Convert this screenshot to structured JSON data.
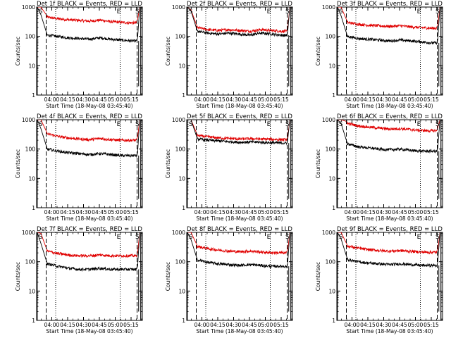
{
  "colors": {
    "events": "#000000",
    "lld": "#e00000",
    "axis": "#000000",
    "background": "#ffffff"
  },
  "panels": [
    {
      "title": "Det 1f BLACK = Events, RED = LLD",
      "xlabel": "Start Time (18-May-08 03:45:40)",
      "ylabel": "Counts/sec"
    },
    {
      "title": "Det 2f BLACK = Events, RED = LLD",
      "xlabel": "Start Time (18-May-08 03:45:40)",
      "ylabel": "Counts/sec"
    },
    {
      "title": "Det 3f BLACK = Events, RED = LLD",
      "xlabel": "Start Time (18-May-08 03:45:40)",
      "ylabel": "Counts/sec"
    },
    {
      "title": "Det 4f BLACK = Events, RED = LLD",
      "xlabel": "Start Time (18-May-08 03:45:40)",
      "ylabel": "Counts/sec"
    },
    {
      "title": "Det 5f BLACK = Events, RED = LLD",
      "xlabel": "Start Time (18-May-08 03:45:40)",
      "ylabel": "Counts/sec"
    },
    {
      "title": "Det 6f BLACK = Events, RED = LLD",
      "xlabel": "Start Time (18-May-08 03:45:40)",
      "ylabel": "Counts/sec"
    },
    {
      "title": "Det 7f BLACK = Events, RED = LLD",
      "xlabel": "Start Time (18-May-08 03:45:40)",
      "ylabel": "Counts/sec"
    },
    {
      "title": "Det 8f BLACK = Events, RED = LLD",
      "xlabel": "Start Time (18-May-08 03:45:40)",
      "ylabel": "Counts/sec"
    },
    {
      "title": "Det 9f BLACK = Events, RED = LLD",
      "xlabel": "Start Time (18-May-08 03:45:40)",
      "ylabel": "Counts/sec"
    }
  ],
  "chart_data": {
    "type": "line",
    "layout": "3x3 grid",
    "x_unit": "minutes after 03:45:40",
    "xlim": [
      0,
      100
    ],
    "y_scale": "log",
    "ylim": [
      1,
      1000
    ],
    "x_ticks": [
      {
        "label": "04:00",
        "value": 14.33
      },
      {
        "label": "04:15",
        "value": 29.33
      },
      {
        "label": "04:30",
        "value": 44.33
      },
      {
        "label": "04:45",
        "value": 59.33
      },
      {
        "label": "05:00",
        "value": 74.33
      },
      {
        "label": "05:15",
        "value": 89.33
      }
    ],
    "y_ticks": [
      {
        "label": "1",
        "value": 1
      },
      {
        "label": "10",
        "value": 10
      },
      {
        "label": "100",
        "value": 100
      },
      {
        "label": "1000",
        "value": 1000
      }
    ],
    "markers": [
      {
        "label": "S",
        "position": 0.5,
        "style": "solid"
      },
      {
        "label": "",
        "position": 9,
        "style": "dashed"
      },
      {
        "label": "",
        "position": 18,
        "style": "dotted"
      },
      {
        "label": "E",
        "position": 79,
        "style": "dotted"
      },
      {
        "label": "",
        "position": 95,
        "style": "dashed"
      },
      {
        "label": "S",
        "position": 98.5,
        "style": "solid"
      }
    ],
    "series": [
      {
        "name": "BLACK = Events",
        "color": "#000000"
      },
      {
        "name": "RED = LLD",
        "color": "#e00000"
      }
    ],
    "panels": [
      {
        "detector": "1f",
        "events_level": 100,
        "lld_level": 400,
        "x_values": [
          10,
          20,
          30,
          40,
          50,
          60,
          70,
          80,
          90
        ],
        "events": [
          110,
          100,
          90,
          85,
          80,
          90,
          80,
          75,
          70
        ],
        "lld": [
          450,
          400,
          370,
          350,
          330,
          360,
          320,
          300,
          290
        ]
      },
      {
        "detector": "2f",
        "events_level": 130,
        "lld_level": 180,
        "x_values": [
          10,
          20,
          30,
          40,
          50,
          60,
          70,
          80,
          90
        ],
        "events": [
          150,
          130,
          120,
          130,
          120,
          110,
          130,
          120,
          110
        ],
        "lld": [
          200,
          170,
          160,
          170,
          160,
          150,
          170,
          160,
          150
        ]
      },
      {
        "detector": "3f",
        "events_level": 90,
        "lld_level": 250,
        "x_values": [
          10,
          20,
          30,
          40,
          50,
          60,
          70,
          80,
          90
        ],
        "events": [
          100,
          85,
          80,
          75,
          70,
          75,
          70,
          65,
          60
        ],
        "lld": [
          300,
          260,
          240,
          230,
          220,
          230,
          210,
          200,
          190
        ]
      },
      {
        "detector": "4f",
        "events_level": 85,
        "lld_level": 250,
        "x_values": [
          10,
          20,
          30,
          40,
          50,
          60,
          70,
          80,
          90
        ],
        "events": [
          100,
          85,
          75,
          70,
          65,
          70,
          65,
          60,
          60
        ],
        "lld": [
          330,
          270,
          240,
          220,
          210,
          230,
          210,
          200,
          200
        ]
      },
      {
        "detector": "5f",
        "events_level": 190,
        "lld_level": 240,
        "x_values": [
          10,
          20,
          30,
          40,
          50,
          60,
          70,
          80,
          90
        ],
        "events": [
          220,
          200,
          190,
          180,
          170,
          175,
          170,
          165,
          160
        ],
        "lld": [
          290,
          260,
          240,
          230,
          220,
          225,
          220,
          215,
          210
        ]
      },
      {
        "detector": "6f",
        "events_level": 110,
        "lld_level": 550,
        "x_values": [
          10,
          20,
          30,
          40,
          50,
          60,
          70,
          80,
          90
        ],
        "events": [
          150,
          120,
          110,
          100,
          95,
          100,
          90,
          85,
          85
        ],
        "lld": [
          750,
          620,
          560,
          520,
          480,
          500,
          460,
          430,
          420
        ]
      },
      {
        "detector": "7f",
        "events_level": 70,
        "lld_level": 180,
        "x_values": [
          10,
          20,
          30,
          40,
          50,
          60,
          70,
          80,
          90
        ],
        "events": [
          85,
          70,
          60,
          55,
          55,
          60,
          55,
          55,
          55
        ],
        "lld": [
          230,
          190,
          170,
          160,
          160,
          170,
          160,
          160,
          160
        ]
      },
      {
        "detector": "8f",
        "events_level": 90,
        "lld_level": 250,
        "x_values": [
          10,
          20,
          30,
          40,
          50,
          60,
          70,
          80,
          90
        ],
        "events": [
          115,
          95,
          85,
          80,
          75,
          80,
          75,
          70,
          70
        ],
        "lld": [
          330,
          280,
          250,
          230,
          220,
          230,
          215,
          205,
          200
        ]
      },
      {
        "detector": "9f",
        "events_level": 95,
        "lld_level": 260,
        "x_values": [
          10,
          20,
          30,
          40,
          50,
          60,
          70,
          80,
          90
        ],
        "events": [
          120,
          100,
          90,
          85,
          80,
          85,
          80,
          75,
          75
        ],
        "lld": [
          340,
          290,
          260,
          240,
          230,
          240,
          225,
          215,
          210
        ]
      }
    ]
  }
}
